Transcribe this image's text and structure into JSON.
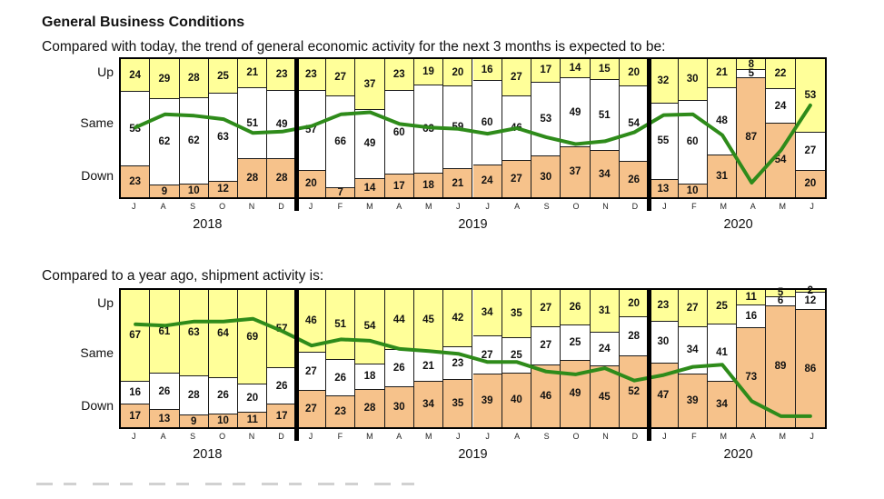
{
  "page": {
    "title": "General Business Conditions",
    "subtitle_outlook": "Compared with today, the trend of general economic activity for the next 3 months is expected to be:",
    "subtitle_shipments": "Compared to a year ago, shipment activity is:"
  },
  "axis_labels": [
    "Up",
    "Same",
    "Down"
  ],
  "colors": {
    "up_fill": "#FFFF99",
    "same_fill": "#FFFFFF",
    "down_fill": "#F6C28B",
    "trend_line": "#2E8B1A",
    "separator": "#000000",
    "bar_border": "#1A1A1A"
  },
  "chart_data": [
    {
      "type": "bar",
      "stacked": true,
      "percent_total": 100,
      "title": "Compared with today, the trend of general economic activity for the next 3 months is expected to be:",
      "categories": [
        "J",
        "A",
        "S",
        "O",
        "N",
        "D",
        "J",
        "F",
        "M",
        "A",
        "M",
        "J",
        "J",
        "A",
        "S",
        "O",
        "N",
        "D",
        "J",
        "F",
        "M",
        "A",
        "M",
        "J"
      ],
      "year_groups": [
        {
          "label": "2018",
          "start": 0,
          "count": 6
        },
        {
          "label": "2019",
          "start": 6,
          "count": 12
        },
        {
          "label": "2020",
          "start": 18,
          "count": 6
        }
      ],
      "series": [
        {
          "name": "Up",
          "values": [
            24,
            29,
            28,
            25,
            21,
            23,
            23,
            27,
            37,
            23,
            19,
            20,
            16,
            27,
            17,
            14,
            15,
            20,
            32,
            30,
            21,
            8,
            22,
            53
          ]
        },
        {
          "name": "Same",
          "values": [
            53,
            62,
            62,
            63,
            51,
            49,
            57,
            66,
            49,
            60,
            63,
            59,
            60,
            46,
            53,
            49,
            51,
            54,
            55,
            60,
            48,
            5,
            24,
            27
          ]
        },
        {
          "name": "Down",
          "values": [
            23,
            9,
            10,
            12,
            28,
            28,
            20,
            7,
            14,
            17,
            18,
            21,
            24,
            27,
            30,
            37,
            34,
            26,
            13,
            10,
            31,
            87,
            54,
            20
          ]
        }
      ],
      "trend_line": {
        "name": "Net percent (Up minus Down), plotted as 50 + net/2 on the 0-100 bar axis",
        "net_values": [
          1,
          20,
          18,
          13,
          -7,
          -5,
          3,
          20,
          23,
          6,
          1,
          -1,
          -8,
          0,
          -13,
          -23,
          -19,
          -6,
          19,
          20,
          -10,
          -79,
          -32,
          33
        ]
      },
      "ylim": [
        0,
        100
      ],
      "grid": false,
      "legend": "none"
    },
    {
      "type": "bar",
      "stacked": true,
      "percent_total": 100,
      "title": "Compared to a year ago, shipment activity is:",
      "categories": [
        "J",
        "A",
        "S",
        "O",
        "N",
        "D",
        "J",
        "F",
        "M",
        "A",
        "M",
        "J",
        "J",
        "A",
        "S",
        "O",
        "N",
        "D",
        "J",
        "F",
        "M",
        "A",
        "M",
        "J"
      ],
      "year_groups": [
        {
          "label": "2018",
          "start": 0,
          "count": 6
        },
        {
          "label": "2019",
          "start": 6,
          "count": 12
        },
        {
          "label": "2020",
          "start": 18,
          "count": 6
        }
      ],
      "series": [
        {
          "name": "Up",
          "values": [
            67,
            61,
            63,
            64,
            69,
            57,
            46,
            51,
            54,
            44,
            45,
            42,
            34,
            35,
            27,
            26,
            31,
            20,
            23,
            27,
            25,
            11,
            5,
            2
          ]
        },
        {
          "name": "Same",
          "values": [
            16,
            26,
            28,
            26,
            20,
            26,
            27,
            26,
            18,
            26,
            21,
            23,
            27,
            25,
            27,
            25,
            24,
            28,
            30,
            34,
            41,
            16,
            6,
            12
          ]
        },
        {
          "name": "Down",
          "values": [
            17,
            13,
            9,
            10,
            11,
            17,
            27,
            23,
            28,
            30,
            34,
            35,
            39,
            40,
            46,
            49,
            45,
            52,
            47,
            39,
            34,
            73,
            89,
            86
          ]
        }
      ],
      "trend_line": {
        "name": "Net percent (Up minus Down), plotted as 50 + net/2 on the 0-100 bar axis",
        "net_values": [
          50,
          48,
          54,
          54,
          58,
          40,
          19,
          28,
          26,
          14,
          11,
          7,
          -5,
          -5,
          -19,
          -23,
          -14,
          -32,
          -24,
          -12,
          -9,
          -62,
          -84,
          -84
        ]
      },
      "ylim": [
        0,
        100
      ],
      "grid": false,
      "legend": "none"
    }
  ]
}
